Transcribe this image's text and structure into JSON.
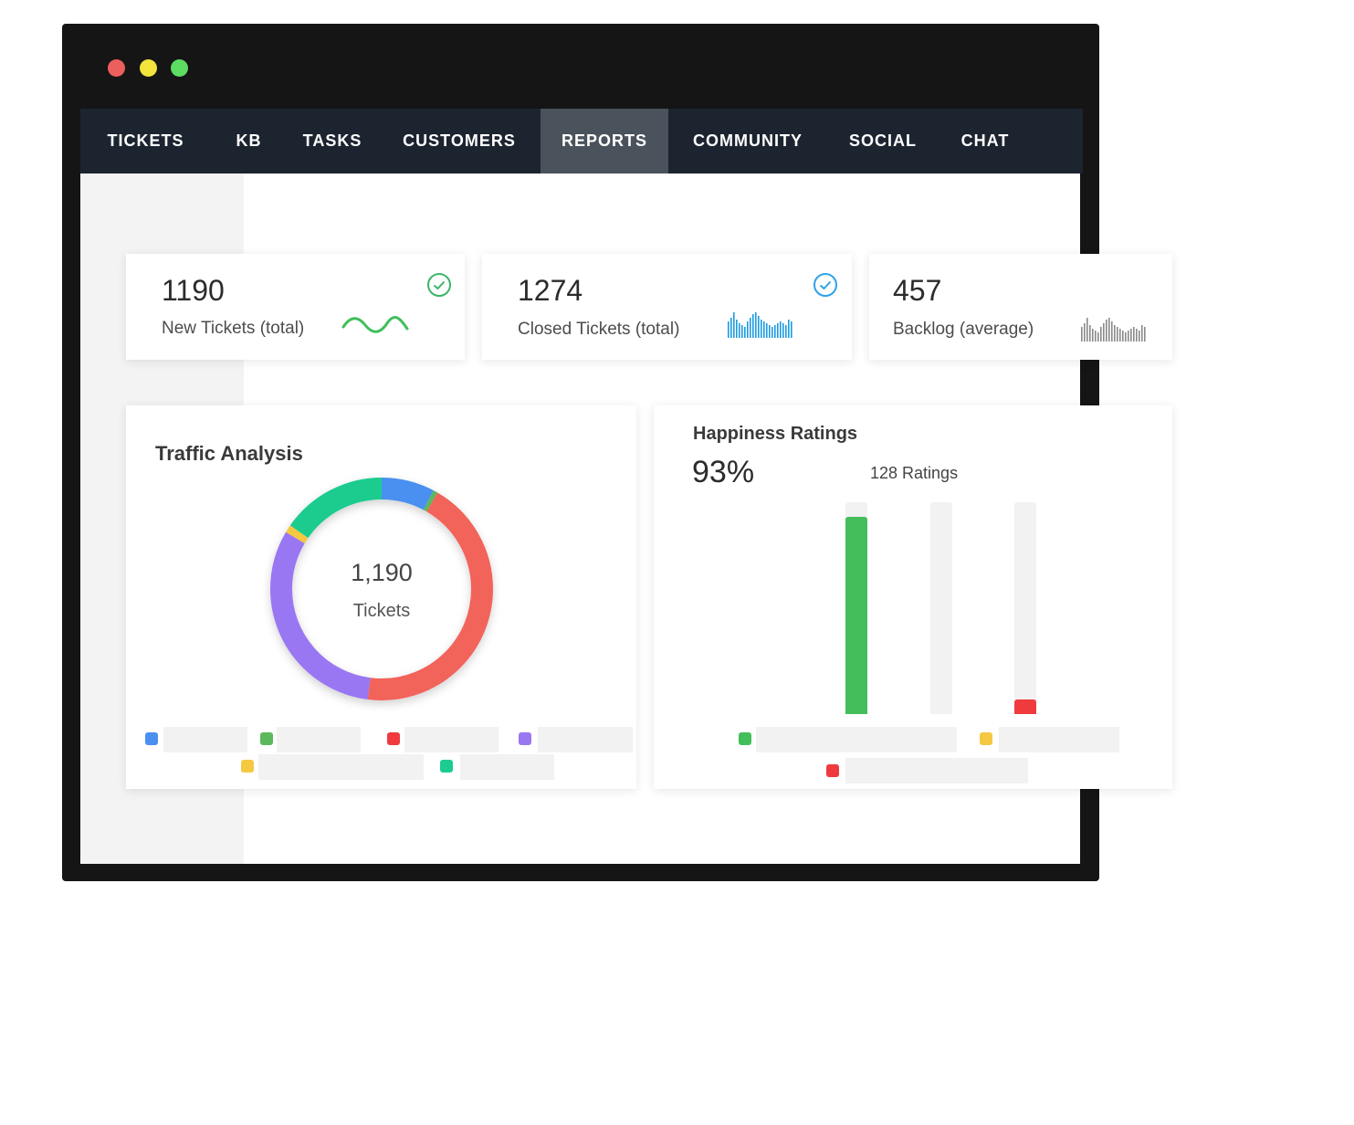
{
  "nav": {
    "items": [
      {
        "label": "TICKETS",
        "active": false
      },
      {
        "label": "KB",
        "active": false
      },
      {
        "label": "TASKS",
        "active": false
      },
      {
        "label": "CUSTOMERS",
        "active": false
      },
      {
        "label": "REPORTS",
        "active": true
      },
      {
        "label": "COMMUNITY",
        "active": false
      },
      {
        "label": "SOCIAL",
        "active": false
      },
      {
        "label": "CHAT",
        "active": false
      }
    ]
  },
  "stats": [
    {
      "value": "1190",
      "label": "New Tickets (total)",
      "icon": "check-circle-icon",
      "icon_color": "#3bb56a",
      "spark": "wave",
      "spark_color": "#3fbf5a"
    },
    {
      "value": "1274",
      "label": "Closed  Tickets (total)",
      "icon": "check-circle-icon",
      "icon_color": "#2ea3e6",
      "spark": "bars",
      "spark_color": "#1b9be0"
    },
    {
      "value": "457",
      "label": "Backlog (average)",
      "icon": "",
      "spark": "bars",
      "spark_color": "#8a8a8a"
    }
  ],
  "traffic": {
    "title": "Traffic Analysis",
    "center_value": "1,190",
    "center_label": "Tickets",
    "segment_colors": {
      "blue": "#4a90f0",
      "green_small": "#5cb85c",
      "red": "#f2635a",
      "purple": "#9a77f2",
      "yellow": "#f5c842",
      "teal": "#1ccc8f"
    }
  },
  "happiness": {
    "title": "Happiness Ratings",
    "percent": "93%",
    "ratings": "128 Ratings",
    "bars": [
      {
        "fill": 0.93,
        "color": "#43be5b"
      },
      {
        "fill": 0.0,
        "color": "#f5c842"
      },
      {
        "fill": 0.07,
        "color": "#ef3b3e"
      }
    ]
  },
  "colors": {
    "nav_bg": "#1c2430",
    "nav_active": "#4a525c",
    "window_frame": "#151515"
  }
}
